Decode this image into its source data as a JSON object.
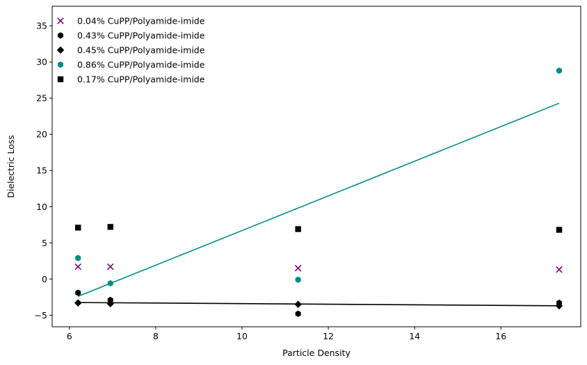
{
  "chart_data": {
    "type": "scatter",
    "xlabel": "Particle Density",
    "ylabel": "Dielectric Loss",
    "xlim": [
      5.6,
      17.85
    ],
    "ylim": [
      -6.6,
      37.7
    ],
    "xticks": [
      6,
      8,
      10,
      12,
      14,
      16
    ],
    "yticks": [
      -5,
      0,
      5,
      10,
      15,
      20,
      25,
      30,
      35
    ],
    "grid": false,
    "legend_position": "top-left",
    "series": [
      {
        "name": "0.04% CuPP/Polyamide-imide",
        "marker": "x",
        "color": "#800080",
        "points": [
          [
            6.2,
            1.7
          ],
          [
            6.95,
            1.7
          ],
          [
            11.3,
            1.5
          ],
          [
            17.35,
            1.3
          ]
        ]
      },
      {
        "name": "0.43% CuPP/Polyamide-imide",
        "marker": "hexagon",
        "color": "#000000",
        "points": [
          [
            6.2,
            -1.9
          ],
          [
            6.95,
            -2.9
          ],
          [
            11.3,
            -4.8
          ],
          [
            17.35,
            -3.3
          ]
        ]
      },
      {
        "name": "0.45% CuPP/Polyamide-imide",
        "marker": "diamond",
        "color": "#000000",
        "points": [
          [
            6.2,
            -3.3
          ],
          [
            6.95,
            -3.4
          ],
          [
            11.3,
            -3.5
          ],
          [
            17.35,
            -3.7
          ]
        ]
      },
      {
        "name": "0.86% CuPP/Polyamide-imide",
        "marker": "hexagon",
        "color": "#008B8B",
        "points": [
          [
            6.2,
            2.9
          ],
          [
            6.95,
            -0.6
          ],
          [
            11.3,
            -0.1
          ],
          [
            17.35,
            28.8
          ]
        ]
      },
      {
        "name": "0.17% CuPP/Polyamide-imide",
        "marker": "square",
        "color": "#000000",
        "points": [
          [
            6.2,
            7.1
          ],
          [
            6.95,
            7.2
          ],
          [
            11.3,
            6.9
          ],
          [
            17.35,
            6.8
          ]
        ]
      }
    ],
    "fit_lines": [
      {
        "color": "#008B8B",
        "x": [
          6.2,
          17.35
        ],
        "y": [
          -2.4,
          24.3
        ]
      },
      {
        "color": "#000000",
        "x": [
          6.2,
          17.35
        ],
        "y": [
          -3.25,
          -3.7
        ]
      }
    ]
  }
}
